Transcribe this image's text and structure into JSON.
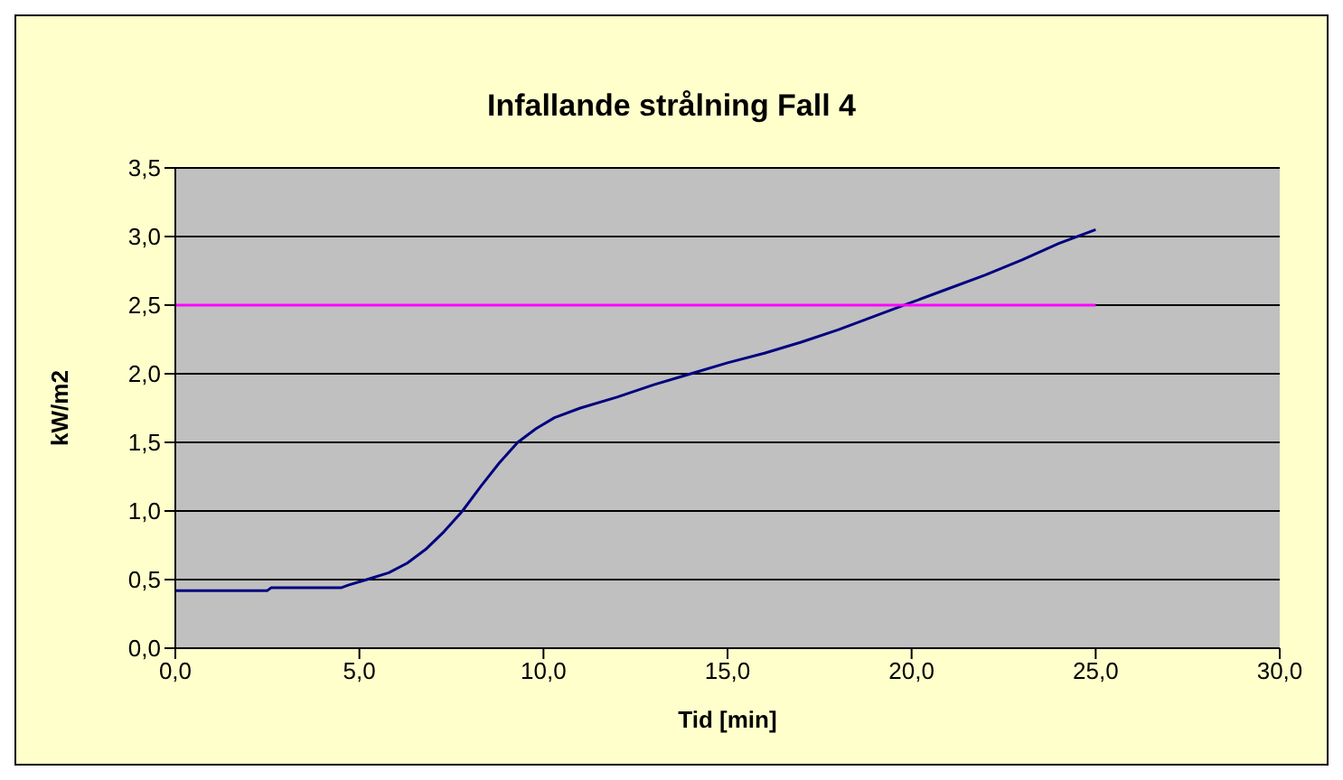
{
  "chart_data": {
    "type": "line",
    "title": "Infallande strålning Fall 4",
    "xlabel": "Tid [min]",
    "ylabel": "kW/m2",
    "series": [
      {
        "color": "#000080",
        "x": [
          0,
          2.5,
          2.6,
          4.5,
          4.7,
          5.2,
          5.8,
          6.3,
          6.8,
          7.3,
          7.8,
          8.3,
          8.8,
          9.3,
          9.8,
          10.3,
          11,
          12,
          13,
          14,
          15,
          16,
          17,
          18,
          19,
          20,
          21,
          22,
          23,
          24,
          25
        ],
        "values": [
          0.42,
          0.42,
          0.44,
          0.44,
          0.46,
          0.5,
          0.55,
          0.62,
          0.72,
          0.85,
          1.0,
          1.18,
          1.35,
          1.5,
          1.6,
          1.68,
          1.75,
          1.83,
          1.92,
          2.0,
          2.08,
          2.15,
          2.23,
          2.32,
          2.42,
          2.52,
          2.62,
          2.72,
          2.83,
          2.95,
          3.05
        ]
      },
      {
        "color": "#ff00ff",
        "x": [
          0,
          25
        ],
        "values": [
          2.5,
          2.5
        ]
      }
    ],
    "xlim": [
      0,
      30
    ],
    "xticks": [
      {
        "value": 0,
        "label": "0,0"
      },
      {
        "value": 5,
        "label": "5,0"
      },
      {
        "value": 10,
        "label": "10,0"
      },
      {
        "value": 15,
        "label": "15,0"
      },
      {
        "value": 20,
        "label": "20,0"
      },
      {
        "value": 25,
        "label": "25,0"
      },
      {
        "value": 30,
        "label": "30,0"
      }
    ],
    "ylim": [
      0,
      3.5
    ],
    "yticks": [
      {
        "value": 0,
        "label": "0,0"
      },
      {
        "value": 0.5,
        "label": "0,5"
      },
      {
        "value": 1,
        "label": "1,0"
      },
      {
        "value": 1.5,
        "label": "1,5"
      },
      {
        "value": 2,
        "label": "2,0"
      },
      {
        "value": 2.5,
        "label": "2,5"
      },
      {
        "value": 3,
        "label": "3,0"
      },
      {
        "value": 3.5,
        "label": "3,5"
      }
    ],
    "grid": "y",
    "marker": "none",
    "line_style": "solid"
  }
}
